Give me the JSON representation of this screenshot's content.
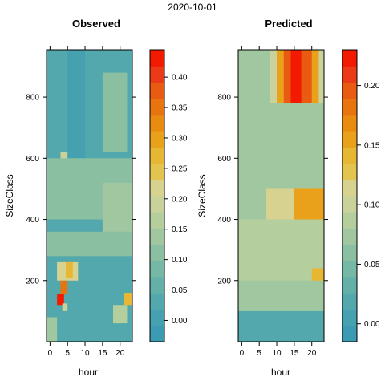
{
  "page": {
    "date": "2020-10-01"
  },
  "palette": {
    "steps": [
      "#3C9AB2",
      "#45A1AF",
      "#52A8AC",
      "#62B0A8",
      "#75B8A5",
      "#8ABFA2",
      "#A0C7A0",
      "#B5CE9E",
      "#C8D29A",
      "#D7D290",
      "#E2C44E",
      "#E7B733",
      "#E9A11B",
      "#E88B10",
      "#E87410",
      "#E95A12",
      "#EB3A18",
      "#F21A00"
    ]
  },
  "chart_data": [
    {
      "type": "heatmap",
      "title": "Observed",
      "xlabel": "hour",
      "ylabel": "SizeClass",
      "x_ticks": [
        0,
        5,
        10,
        15,
        20
      ],
      "y_ticks": [
        200,
        400,
        600,
        800
      ],
      "xlim": [
        -1,
        23.5
      ],
      "ylim": [
        0,
        955
      ],
      "colorbar": {
        "min": -0.035,
        "max": 0.445,
        "ticks": [
          0.0,
          0.05,
          0.1,
          0.15,
          0.2,
          0.25,
          0.3,
          0.35,
          0.4
        ],
        "tick_labels": [
          "0.00",
          "0.05",
          "0.10",
          "0.15",
          "0.20",
          "0.25",
          "0.30",
          "0.35",
          "0.40"
        ]
      },
      "baseline": 0.04,
      "value_range": [
        -0.03,
        0.44
      ],
      "features": [
        {
          "x0": -1,
          "x1": 23.5,
          "y0": 780,
          "y1": 955,
          "value": 0.03
        },
        {
          "x0": 15,
          "x1": 22,
          "y0": 620,
          "y1": 880,
          "value": 0.11
        },
        {
          "x0": 5,
          "x1": 10,
          "y0": 600,
          "y1": 955,
          "value": 0.01
        },
        {
          "x0": 3,
          "x1": 5,
          "y0": 500,
          "y1": 620,
          "value": 0.2
        },
        {
          "x0": -1,
          "x1": 23.5,
          "y0": 400,
          "y1": 600,
          "value": 0.1
        },
        {
          "x0": 15,
          "x1": 23.5,
          "y0": 300,
          "y1": 520,
          "value": 0.13
        },
        {
          "x0": -1,
          "x1": 23.5,
          "y0": 280,
          "y1": 360,
          "value": 0.12
        },
        {
          "x0": 2,
          "x1": 8,
          "y0": 200,
          "y1": 260,
          "value": 0.22
        },
        {
          "x0": 4.5,
          "x1": 6.5,
          "y0": 210,
          "y1": 260,
          "value": 0.27
        },
        {
          "x0": 3,
          "x1": 5,
          "y0": 155,
          "y1": 200,
          "value": 0.36
        },
        {
          "x0": 2,
          "x1": 4,
          "y0": 120,
          "y1": 155,
          "value": 0.44
        },
        {
          "x0": 3.5,
          "x1": 5,
          "y0": 100,
          "y1": 125,
          "value": 0.2
        },
        {
          "x0": 21,
          "x1": 23.5,
          "y0": 120,
          "y1": 160,
          "value": 0.27
        },
        {
          "x0": 18,
          "x1": 22,
          "y0": 60,
          "y1": 120,
          "value": 0.17
        },
        {
          "x0": -1,
          "x1": 2,
          "y0": 0,
          "y1": 80,
          "value": 0.14
        }
      ]
    },
    {
      "type": "heatmap",
      "title": "Predicted",
      "xlabel": "hour",
      "ylabel": "SizeClass",
      "x_ticks": [
        0,
        5,
        10,
        15,
        20
      ],
      "y_ticks": [
        200,
        400,
        600,
        800
      ],
      "xlim": [
        -1,
        23.5
      ],
      "ylim": [
        0,
        955
      ],
      "colorbar": {
        "min": -0.015,
        "max": 0.23,
        "ticks": [
          0.0,
          0.05,
          0.1,
          0.15,
          0.2
        ],
        "tick_labels": [
          "0.00",
          "0.05",
          "0.10",
          "0.15",
          "0.20"
        ]
      },
      "baseline": 0.07,
      "value_range": [
        -0.01,
        0.23
      ],
      "features": [
        {
          "x0": 8,
          "x1": 23.5,
          "y0": 780,
          "y1": 955,
          "value": 0.1
        },
        {
          "x0": 10,
          "x1": 22,
          "y0": 780,
          "y1": 955,
          "value": 0.15
        },
        {
          "x0": 12,
          "x1": 20,
          "y0": 780,
          "y1": 955,
          "value": 0.19
        },
        {
          "x0": 14,
          "x1": 17,
          "y0": 780,
          "y1": 955,
          "value": 0.23
        },
        {
          "x0": 8,
          "x1": 23.5,
          "y0": 600,
          "y1": 780,
          "value": 0.08
        },
        {
          "x0": -1,
          "x1": 23.5,
          "y0": 400,
          "y1": 500,
          "value": 0.08
        },
        {
          "x0": 7,
          "x1": 20,
          "y0": 400,
          "y1": 500,
          "value": 0.12
        },
        {
          "x0": 15,
          "x1": 23.5,
          "y0": 400,
          "y1": 500,
          "value": 0.16
        },
        {
          "x0": -1,
          "x1": 23.5,
          "y0": 200,
          "y1": 400,
          "value": 0.09
        },
        {
          "x0": 20,
          "x1": 23.5,
          "y0": 200,
          "y1": 240,
          "value": 0.14
        },
        {
          "x0": -1,
          "x1": 23.5,
          "y0": 0,
          "y1": 100,
          "value": 0.02
        }
      ]
    }
  ]
}
